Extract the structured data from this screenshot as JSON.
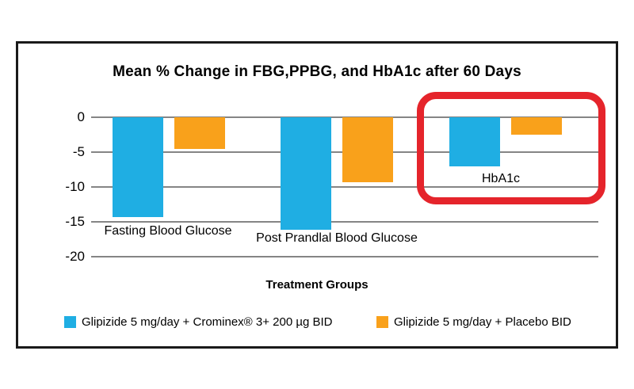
{
  "chart_data": {
    "type": "bar",
    "title": "Mean % Change in FBG,PPBG, and HbA1c after 60 Days",
    "xlabel": "Treatment Groups",
    "ylabel": "",
    "categories": [
      "Fasting Blood Glucose",
      "Post Prandlal Blood Glucose",
      "HbA1c"
    ],
    "series": [
      {
        "name": "Glipizide 5 mg/day + Crominex® 3+ 200 µg BID",
        "color": "#1faee3",
        "values": [
          -14.4,
          -16.2,
          -7.1
        ]
      },
      {
        "name": "Glipizide 5 mg/day + Placebo BID",
        "color": "#f9a11b",
        "values": [
          -4.6,
          -9.4,
          -2.5
        ]
      }
    ],
    "y_ticks": [
      "0",
      "-5",
      "-10",
      "-15",
      "-20"
    ],
    "y_tick_values": [
      0,
      -5,
      -10,
      -15,
      -20
    ],
    "ylim": [
      -20,
      0
    ],
    "grid": true,
    "legend_position": "bottom",
    "annotation": {
      "type": "highlight-box",
      "target_category": "HbA1c",
      "color": "#e5242b"
    }
  }
}
